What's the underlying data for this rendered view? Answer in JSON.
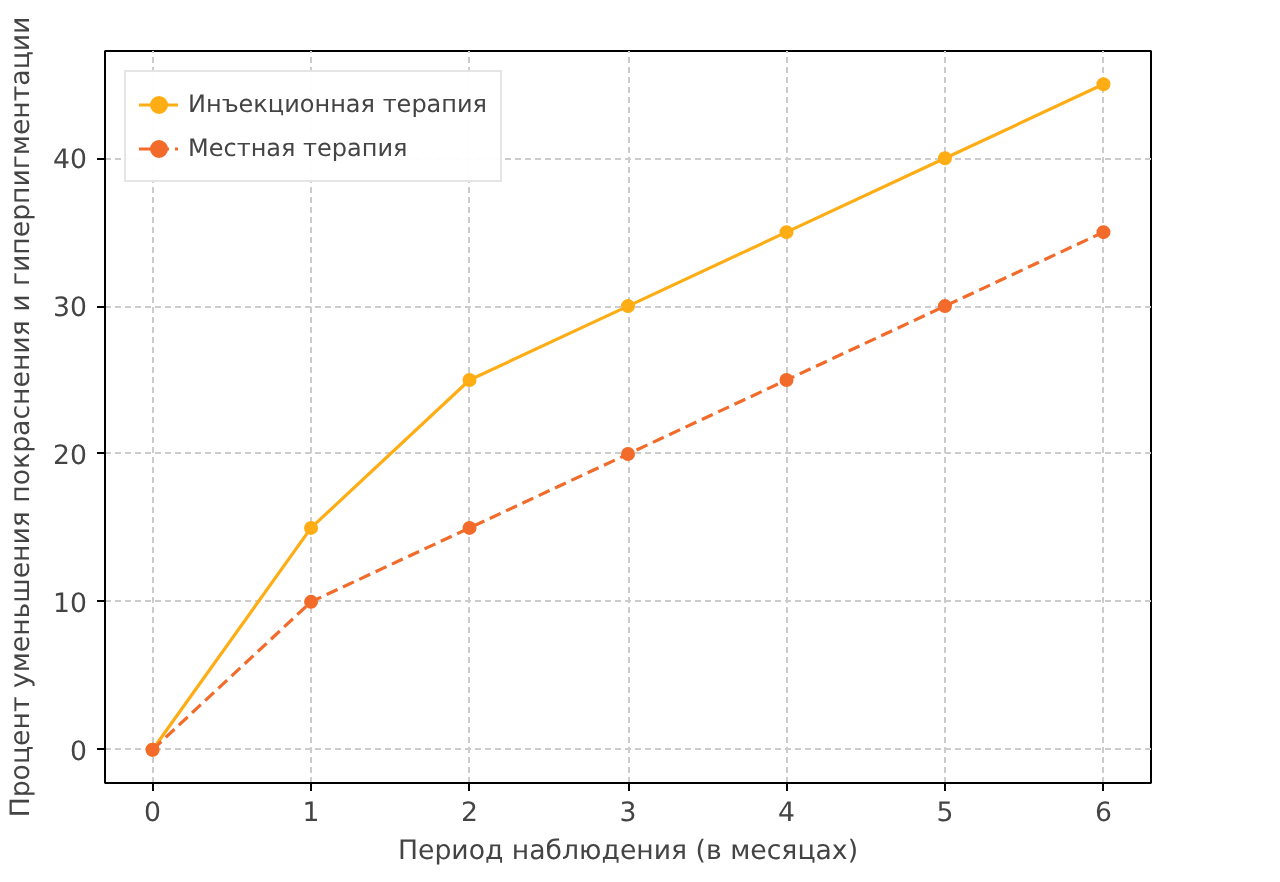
{
  "chart_data": {
    "type": "line",
    "xlabel": "Период наблюдения (в месяцах)",
    "ylabel": "Процент уменьшения покраснения и гиперпигментации",
    "x": [
      0,
      1,
      2,
      3,
      4,
      5,
      6
    ],
    "series": [
      {
        "name": "Инъекционная терапия",
        "color": "#ffad14",
        "values": [
          0,
          15,
          25,
          30,
          35,
          40,
          45
        ],
        "line_style": "solid"
      },
      {
        "name": "Местная терапия",
        "color": "#f26b2a",
        "values": [
          0,
          10,
          15,
          20,
          25,
          30,
          35
        ],
        "line_style": "dashed"
      }
    ],
    "xlim": [
      -0.3,
      6.3
    ],
    "ylim": [
      -2.25,
      47.25
    ],
    "xticks": [
      0,
      1,
      2,
      3,
      4,
      5,
      6
    ],
    "yticks": [
      0,
      10,
      20,
      30,
      40
    ],
    "grid": true,
    "legend": "top left",
    "marker": "circle"
  }
}
